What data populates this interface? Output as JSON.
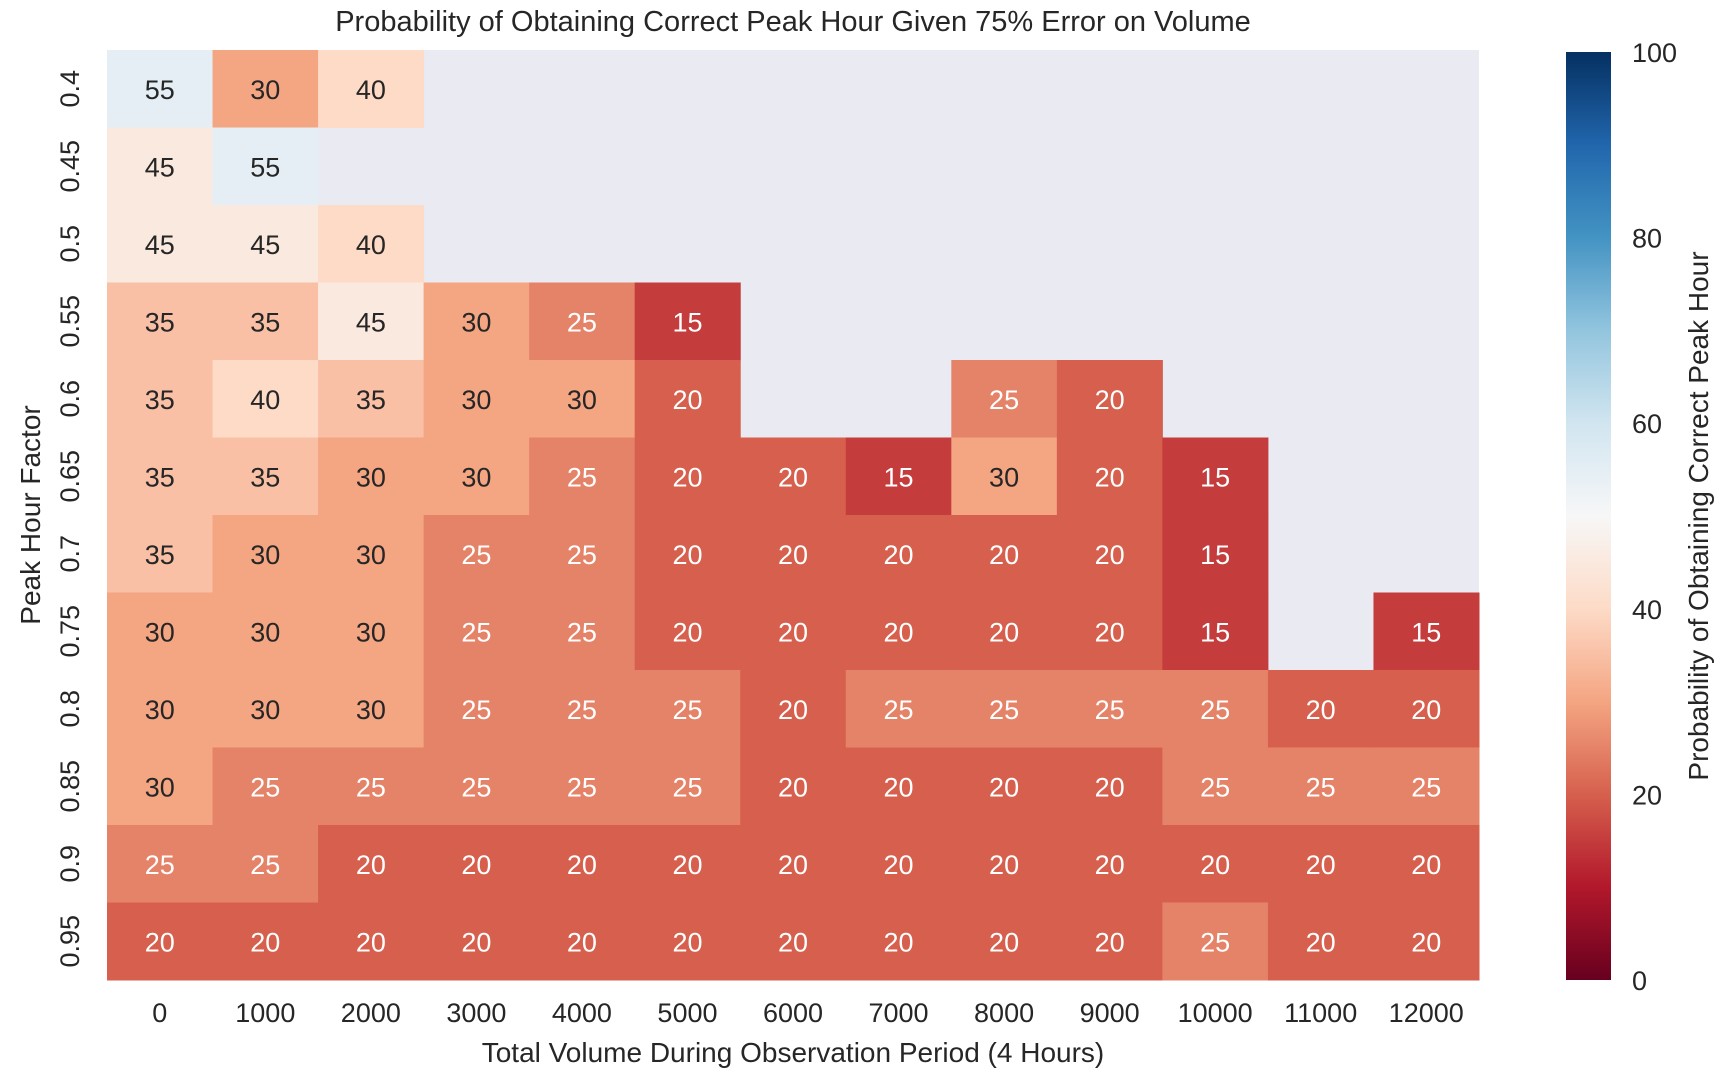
{
  "chart_data": {
    "type": "heatmap",
    "title": "Probability of Obtaining Correct Peak Hour Given 75% Error on Volume",
    "xlabel": "Total Volume During Observation Period (4 Hours)",
    "ylabel": "Peak Hour Factor",
    "x_categories": [
      "0",
      "1000",
      "2000",
      "3000",
      "4000",
      "5000",
      "6000",
      "7000",
      "8000",
      "9000",
      "10000",
      "11000",
      "12000"
    ],
    "y_categories": [
      "0.4",
      "0.45",
      "0.5",
      "0.55",
      "0.6",
      "0.65",
      "0.7",
      "0.75",
      "0.8",
      "0.85",
      "0.9",
      "0.95"
    ],
    "values": [
      [
        55,
        30,
        40,
        null,
        null,
        null,
        null,
        null,
        null,
        null,
        null,
        null,
        null
      ],
      [
        45,
        55,
        null,
        null,
        null,
        null,
        null,
        null,
        null,
        null,
        null,
        null,
        null
      ],
      [
        45,
        45,
        40,
        null,
        null,
        null,
        null,
        null,
        null,
        null,
        null,
        null,
        null
      ],
      [
        35,
        35,
        45,
        30,
        25,
        15,
        null,
        null,
        null,
        null,
        null,
        null,
        null
      ],
      [
        35,
        40,
        35,
        30,
        30,
        20,
        null,
        null,
        25,
        20,
        null,
        null,
        null
      ],
      [
        35,
        35,
        30,
        30,
        25,
        20,
        20,
        15,
        30,
        20,
        15,
        null,
        null
      ],
      [
        35,
        30,
        30,
        25,
        25,
        20,
        20,
        20,
        20,
        20,
        15,
        null,
        null
      ],
      [
        30,
        30,
        30,
        25,
        25,
        20,
        20,
        20,
        20,
        20,
        15,
        null,
        15
      ],
      [
        30,
        30,
        30,
        25,
        25,
        25,
        20,
        25,
        25,
        25,
        25,
        20,
        20
      ],
      [
        30,
        25,
        25,
        25,
        25,
        25,
        20,
        20,
        20,
        20,
        25,
        25,
        25
      ],
      [
        25,
        25,
        20,
        20,
        20,
        20,
        20,
        20,
        20,
        20,
        20,
        20,
        20
      ],
      [
        20,
        20,
        20,
        20,
        20,
        20,
        20,
        20,
        20,
        20,
        25,
        20,
        20
      ]
    ],
    "colormap": "RdBu",
    "vmin": 0,
    "vmax": 100,
    "missing_color": "#eaeaf2",
    "colorbar": {
      "label": "Probability of Obtaining Correct Peak Hour",
      "ticks": [
        "0",
        "20",
        "40",
        "60",
        "80",
        "100"
      ]
    },
    "annotated": true,
    "grid": false
  }
}
